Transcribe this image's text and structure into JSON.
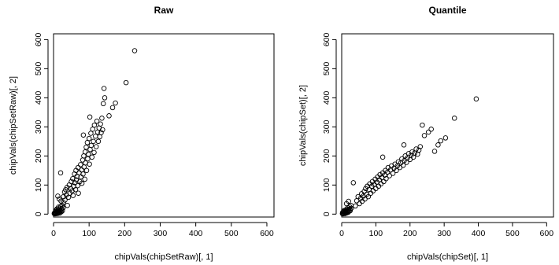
{
  "chart_data": [
    {
      "type": "scatter",
      "title": "Raw",
      "xlabel": "chipVals(chipSetRaw)[, 1]",
      "ylabel": "chipVals(chipSetRaw)[, 2]",
      "xlim": [
        0,
        620
      ],
      "ylim": [
        -10,
        620
      ],
      "x_ticks": [
        "0",
        "100",
        "200",
        "300",
        "400",
        "500",
        "600"
      ],
      "y_ticks": [
        "0",
        "100",
        "200",
        "300",
        "400",
        "500",
        "600"
      ],
      "x_tick_values": [
        0,
        100,
        200,
        300,
        400,
        500,
        600
      ],
      "y_tick_values": [
        0,
        100,
        200,
        300,
        400,
        500,
        600
      ],
      "grid": false,
      "marker": "open-circle",
      "points": [
        [
          2,
          2
        ],
        [
          3,
          5
        ],
        [
          4,
          1
        ],
        [
          5,
          8
        ],
        [
          6,
          3
        ],
        [
          6,
          12
        ],
        [
          7,
          4
        ],
        [
          8,
          6
        ],
        [
          8,
          14
        ],
        [
          9,
          2
        ],
        [
          10,
          9
        ],
        [
          10,
          18
        ],
        [
          11,
          5
        ],
        [
          12,
          11
        ],
        [
          13,
          3
        ],
        [
          14,
          16
        ],
        [
          14,
          24
        ],
        [
          15,
          7
        ],
        [
          16,
          13
        ],
        [
          17,
          20
        ],
        [
          18,
          4
        ],
        [
          19,
          10
        ],
        [
          20,
          26
        ],
        [
          21,
          15
        ],
        [
          22,
          8
        ],
        [
          23,
          19
        ],
        [
          24,
          30
        ],
        [
          25,
          12
        ],
        [
          27,
          22
        ],
        [
          28,
          40
        ],
        [
          12,
          62
        ],
        [
          16,
          52
        ],
        [
          21,
          45
        ],
        [
          20,
          142
        ],
        [
          28,
          60
        ],
        [
          31,
          76
        ],
        [
          32,
          48
        ],
        [
          34,
          84
        ],
        [
          36,
          66
        ],
        [
          38,
          92
        ],
        [
          39,
          30
        ],
        [
          42,
          58
        ],
        [
          44,
          100
        ],
        [
          46,
          72
        ],
        [
          48,
          88
        ],
        [
          50,
          112
        ],
        [
          52,
          80
        ],
        [
          54,
          122
        ],
        [
          55,
          64
        ],
        [
          57,
          96
        ],
        [
          59,
          138
        ],
        [
          60,
          108
        ],
        [
          62,
          84
        ],
        [
          63,
          150
        ],
        [
          64,
          118
        ],
        [
          66,
          130
        ],
        [
          68,
          98
        ],
        [
          69,
          160
        ],
        [
          70,
          72
        ],
        [
          72,
          142
        ],
        [
          74,
          112
        ],
        [
          76,
          170
        ],
        [
          77,
          128
        ],
        [
          79,
          152
        ],
        [
          80,
          106
        ],
        [
          82,
          186
        ],
        [
          83,
          138
        ],
        [
          85,
          200
        ],
        [
          86,
          162
        ],
        [
          88,
          120
        ],
        [
          89,
          214
        ],
        [
          90,
          176
        ],
        [
          92,
          230
        ],
        [
          93,
          150
        ],
        [
          95,
          246
        ],
        [
          96,
          190
        ],
        [
          98,
          206
        ],
        [
          100,
          260
        ],
        [
          101,
          172
        ],
        [
          103,
          222
        ],
        [
          105,
          278
        ],
        [
          106,
          236
        ],
        [
          108,
          196
        ],
        [
          110,
          292
        ],
        [
          112,
          250
        ],
        [
          114,
          212
        ],
        [
          115,
          306
        ],
        [
          118,
          268
        ],
        [
          120,
          232
        ],
        [
          122,
          320
        ],
        [
          124,
          282
        ],
        [
          126,
          250
        ],
        [
          128,
          296
        ],
        [
          130,
          266
        ],
        [
          132,
          310
        ],
        [
          134,
          280
        ],
        [
          136,
          330
        ],
        [
          138,
          290
        ],
        [
          84,
          272
        ],
        [
          102,
          334
        ],
        [
          140,
          380
        ],
        [
          142,
          432
        ],
        [
          144,
          400
        ],
        [
          156,
          338
        ],
        [
          166,
          366
        ],
        [
          174,
          382
        ],
        [
          204,
          452
        ],
        [
          228,
          562
        ]
      ]
    },
    {
      "type": "scatter",
      "title": "Quantile",
      "xlabel": "chipVals(chipSet)[, 1]",
      "ylabel": "chipVals(chipSet)[, 2]",
      "xlim": [
        0,
        620
      ],
      "ylim": [
        -10,
        620
      ],
      "x_ticks": [
        "0",
        "100",
        "200",
        "300",
        "400",
        "500",
        "600"
      ],
      "y_ticks": [
        "0",
        "100",
        "200",
        "300",
        "400",
        "500",
        "600"
      ],
      "x_tick_values": [
        0,
        100,
        200,
        300,
        400,
        500,
        600
      ],
      "y_tick_values": [
        0,
        100,
        200,
        300,
        400,
        500,
        600
      ],
      "grid": false,
      "marker": "open-circle",
      "points": [
        [
          2,
          2
        ],
        [
          3,
          6
        ],
        [
          4,
          1
        ],
        [
          5,
          9
        ],
        [
          6,
          3
        ],
        [
          7,
          12
        ],
        [
          8,
          5
        ],
        [
          9,
          8
        ],
        [
          10,
          2
        ],
        [
          11,
          14
        ],
        [
          12,
          6
        ],
        [
          13,
          10
        ],
        [
          14,
          4
        ],
        [
          15,
          17
        ],
        [
          16,
          8
        ],
        [
          17,
          12
        ],
        [
          18,
          22
        ],
        [
          19,
          6
        ],
        [
          20,
          15
        ],
        [
          22,
          10
        ],
        [
          23,
          26
        ],
        [
          24,
          18
        ],
        [
          25,
          12
        ],
        [
          27,
          30
        ],
        [
          28,
          20
        ],
        [
          14,
          36
        ],
        [
          20,
          44
        ],
        [
          34,
          108
        ],
        [
          40,
          28
        ],
        [
          44,
          46
        ],
        [
          48,
          60
        ],
        [
          52,
          36
        ],
        [
          55,
          54
        ],
        [
          58,
          70
        ],
        [
          60,
          44
        ],
        [
          63,
          62
        ],
        [
          66,
          78
        ],
        [
          68,
          52
        ],
        [
          70,
          88
        ],
        [
          73,
          68
        ],
        [
          75,
          96
        ],
        [
          78,
          60
        ],
        [
          80,
          84
        ],
        [
          82,
          104
        ],
        [
          85,
          72
        ],
        [
          88,
          96
        ],
        [
          90,
          112
        ],
        [
          92,
          80
        ],
        [
          95,
          102
        ],
        [
          98,
          120
        ],
        [
          100,
          88
        ],
        [
          103,
          110
        ],
        [
          105,
          128
        ],
        [
          108,
          96
        ],
        [
          110,
          118
        ],
        [
          112,
          136
        ],
        [
          115,
          104
        ],
        [
          118,
          126
        ],
        [
          120,
          142
        ],
        [
          123,
          112
        ],
        [
          126,
          134
        ],
        [
          128,
          150
        ],
        [
          130,
          122
        ],
        [
          134,
          144
        ],
        [
          136,
          160
        ],
        [
          140,
          132
        ],
        [
          143,
          152
        ],
        [
          146,
          166
        ],
        [
          150,
          140
        ],
        [
          153,
          158
        ],
        [
          156,
          172
        ],
        [
          160,
          150
        ],
        [
          163,
          166
        ],
        [
          166,
          180
        ],
        [
          170,
          160
        ],
        [
          173,
          176
        ],
        [
          176,
          190
        ],
        [
          180,
          168
        ],
        [
          183,
          184
        ],
        [
          186,
          200
        ],
        [
          190,
          178
        ],
        [
          193,
          194
        ],
        [
          196,
          208
        ],
        [
          200,
          188
        ],
        [
          203,
          202
        ],
        [
          206,
          214
        ],
        [
          210,
          196
        ],
        [
          214,
          210
        ],
        [
          218,
          224
        ],
        [
          222,
          206
        ],
        [
          226,
          220
        ],
        [
          230,
          232
        ],
        [
          120,
          196
        ],
        [
          182,
          238
        ],
        [
          236,
          306
        ],
        [
          242,
          270
        ],
        [
          254,
          282
        ],
        [
          262,
          292
        ],
        [
          272,
          216
        ],
        [
          282,
          238
        ],
        [
          290,
          252
        ],
        [
          304,
          262
        ],
        [
          330,
          330
        ],
        [
          394,
          396
        ]
      ]
    }
  ]
}
